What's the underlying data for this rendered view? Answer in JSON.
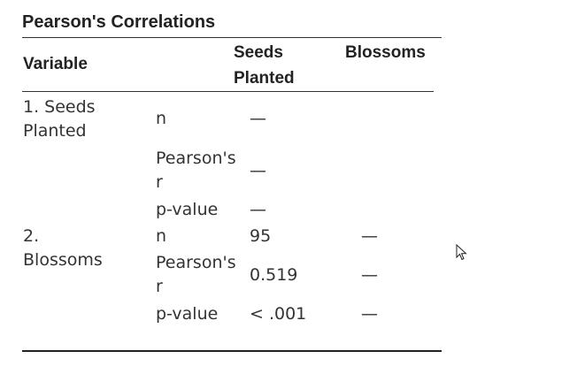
{
  "table": {
    "title": "Pearson's Correlations",
    "headers": {
      "variable": "Variable",
      "seeds_planted": "Seeds Planted",
      "blossoms": "Blossoms"
    },
    "rows": [
      {
        "variable": "1. Seeds Planted",
        "stats": [
          {
            "label": "n",
            "seeds_planted": "—",
            "blossoms": ""
          },
          {
            "label": "Pearson's r",
            "seeds_planted": "—",
            "blossoms": ""
          },
          {
            "label": "p-value",
            "seeds_planted": "—",
            "blossoms": ""
          }
        ]
      },
      {
        "variable": "2. Blossoms",
        "stats": [
          {
            "label": "n",
            "seeds_planted": "95",
            "blossoms": "—"
          },
          {
            "label": "Pearson's r",
            "seeds_planted": "0.519",
            "blossoms": "—"
          },
          {
            "label": "p-value",
            "seeds_planted": "< .001",
            "blossoms": "—"
          }
        ]
      }
    ]
  },
  "cursor": {
    "icon": "mouse-pointer-icon"
  }
}
